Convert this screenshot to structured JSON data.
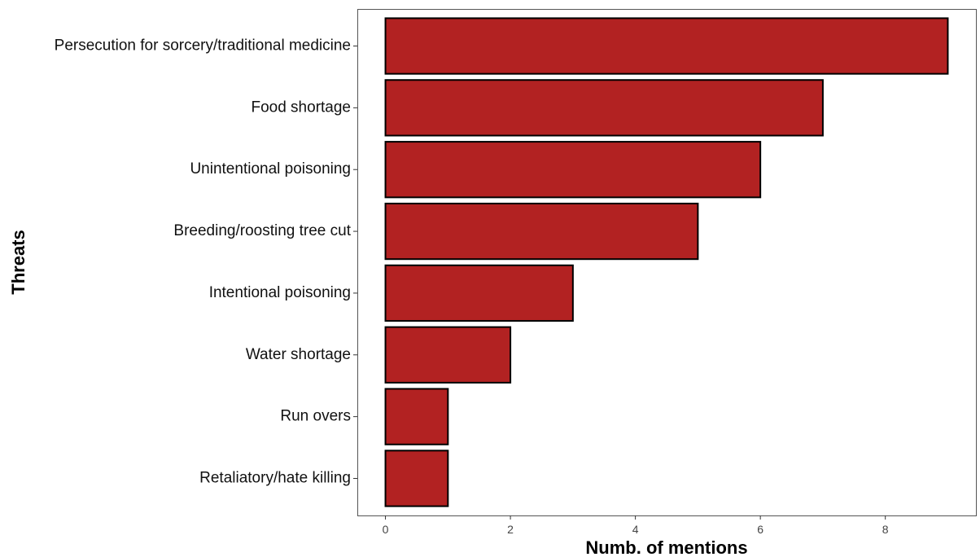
{
  "chart_data": {
    "type": "bar",
    "orientation": "horizontal",
    "categories": [
      "Persecution for sorcery/traditional medicine",
      "Food shortage",
      "Unintentional poisoning",
      "Breeding/roosting tree cut",
      "Intentional poisoning",
      "Water shortage",
      "Run overs",
      "Retaliatory/hate killing"
    ],
    "values": [
      9,
      7,
      6,
      5,
      3,
      2,
      1,
      1
    ],
    "xlabel": "Numb. of mentions",
    "ylabel": "Threats",
    "xlim": [
      -0.45,
      9.45
    ],
    "x_ticks": [
      "0",
      "2",
      "4",
      "6",
      "8"
    ],
    "grid": false,
    "legend": "none",
    "bar_color": "#b22222",
    "bar_border_color": "#000000"
  }
}
